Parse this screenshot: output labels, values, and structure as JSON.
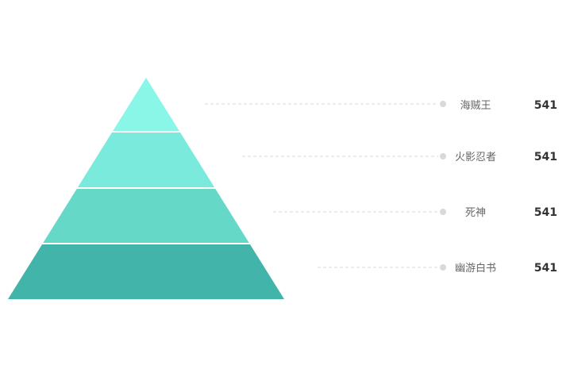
{
  "chart_data": {
    "type": "pyramid",
    "categories": [
      "海贼王",
      "火影忍者",
      "死神",
      "幽游白书"
    ],
    "values": [
      541,
      541,
      541,
      541
    ],
    "colors": [
      "#8af6e8",
      "#7aeadc",
      "#66d8c8",
      "#42b4aa"
    ],
    "leader_color": "#d9d9d9",
    "legend_position": "right"
  }
}
